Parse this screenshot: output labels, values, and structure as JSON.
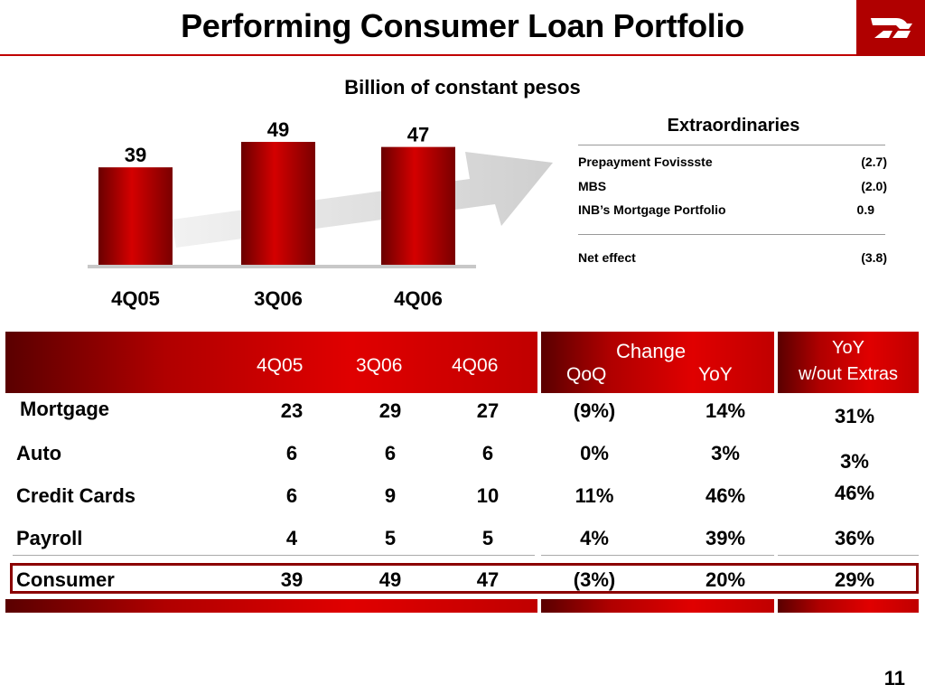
{
  "slide": {
    "title": "Performing Consumer Loan Portfolio",
    "subtitle": "Billion of constant pesos",
    "page_number": "11",
    "accent_color": "#c00000"
  },
  "chart_data": {
    "type": "bar",
    "categories": [
      "4Q05",
      "3Q06",
      "4Q06"
    ],
    "values": [
      39,
      49,
      47
    ],
    "title": "",
    "xlabel": "",
    "ylabel": "",
    "ylim": [
      0,
      55
    ],
    "bar_color": "#c00000",
    "trend_arrow": true
  },
  "extraordinaries": {
    "title": "Extraordinaries",
    "items": [
      {
        "label": "Prepayment Fovissste",
        "value": "(2.7)"
      },
      {
        "label": "MBS",
        "value": "(2.0)"
      },
      {
        "label": "INB’s Mortgage Portfolio",
        "value": "0.9"
      }
    ],
    "net": {
      "label": "Net effect",
      "value": "(3.8)"
    }
  },
  "table": {
    "headers": {
      "q1": "4Q05",
      "q2": "3Q06",
      "q3": "4Q06",
      "change": "Change",
      "qoq": "QoQ",
      "yoy": "YoY",
      "extras_line1": "YoY",
      "extras_line2": "w/out Extras"
    },
    "rows": [
      {
        "label": "Mortgage",
        "q1": "23",
        "q2": "29",
        "q3": "27",
        "qoq": "(9%)",
        "yoy": "14%",
        "extras": "31%"
      },
      {
        "label": "Auto",
        "q1": "6",
        "q2": "6",
        "q3": "6",
        "qoq": "0%",
        "yoy": "3%",
        "extras": "3%"
      },
      {
        "label": "Credit Cards",
        "q1": "6",
        "q2": "9",
        "q3": "10",
        "qoq": "11%",
        "yoy": "46%",
        "extras": "46%"
      },
      {
        "label": "Payroll",
        "q1": "4",
        "q2": "5",
        "q3": "5",
        "qoq": "4%",
        "yoy": "39%",
        "extras": "36%"
      },
      {
        "label": "Consumer",
        "q1": "39",
        "q2": "49",
        "q3": "47",
        "qoq": "(3%)",
        "yoy": "20%",
        "extras": "29%"
      }
    ]
  }
}
